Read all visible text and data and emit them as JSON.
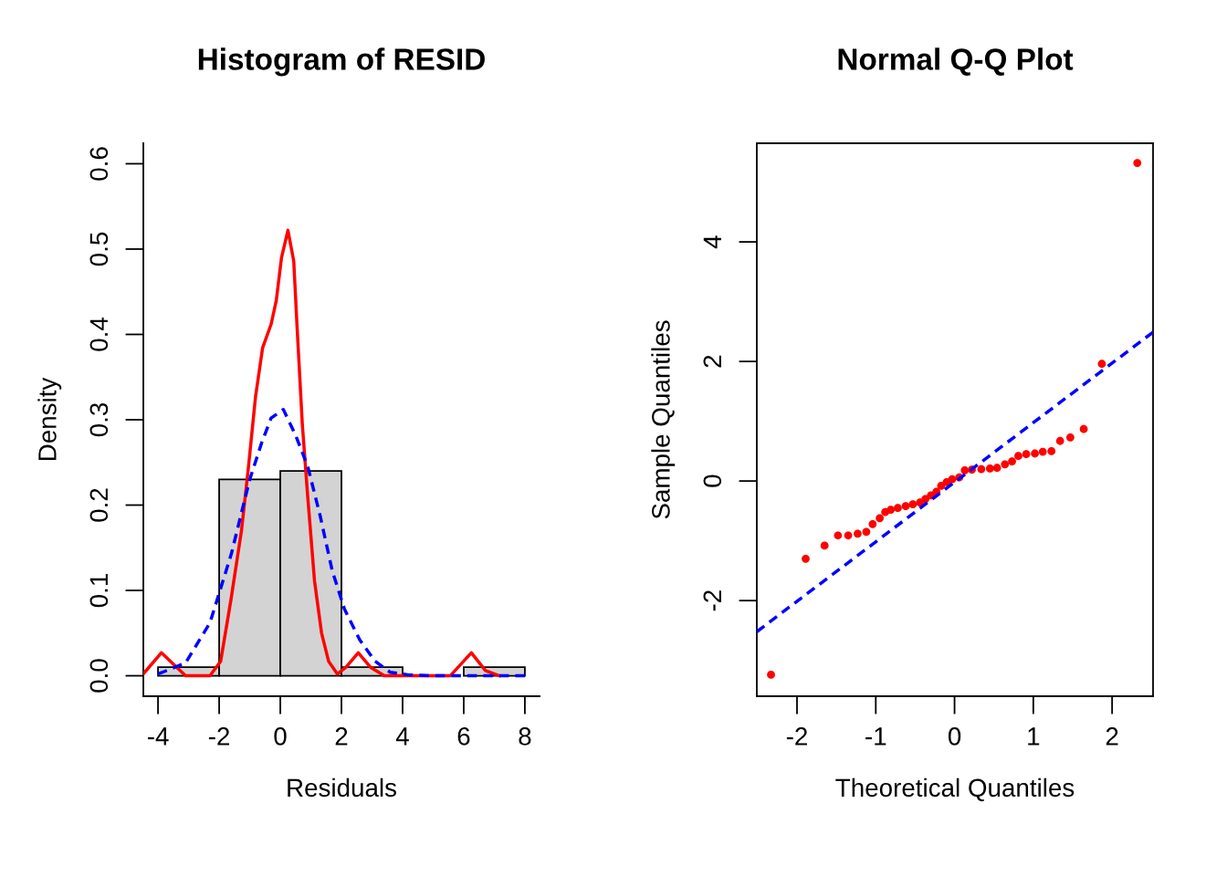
{
  "chart_data": [
    {
      "type": "histogram",
      "title": "Histogram of RESID",
      "xlabel": "Residuals",
      "ylabel": "Density",
      "bins": [
        -4,
        -2,
        0,
        2,
        4,
        6,
        8
      ],
      "values": [
        0.01,
        0.23,
        0.24,
        0.01,
        0,
        0.01
      ],
      "color": "#d3d3d3",
      "xlim": [
        -4.48,
        8.48
      ],
      "ylim": [
        -0.024,
        0.624
      ],
      "xticks": [
        -4,
        -2,
        0,
        2,
        4,
        6,
        8
      ],
      "yticks": [
        {
          "value": 0,
          "label": "0.0"
        },
        0.1,
        0.2,
        0.3,
        0.4,
        0.5,
        0.6
      ],
      "grid": false,
      "legend": false,
      "series": [
        {
          "type": "line",
          "color": "#ff0000",
          "line_style": "solid",
          "x": [
            -4.46,
            -3.89,
            -3.1,
            -2.3,
            -1.95,
            -1.61,
            -1.27,
            -1.04,
            -0.81,
            -0.58,
            -0.3,
            -0.13,
            0.04,
            0.25,
            0.44,
            0.55,
            0.72,
            0.89,
            1.12,
            1.35,
            1.58,
            1.87,
            2.15,
            2.55,
            2.95,
            3.4,
            5.56,
            6.25,
            6.71,
            7.16
          ],
          "values": [
            0.003,
            0.027,
            0,
            0,
            0.017,
            0.09,
            0.17,
            0.245,
            0.327,
            0.384,
            0.412,
            0.44,
            0.49,
            0.522,
            0.486,
            0.408,
            0.295,
            0.213,
            0.111,
            0.05,
            0.017,
            0.002,
            0.01,
            0.027,
            0.01,
            0,
            0,
            0.027,
            0.006,
            0
          ]
        },
        {
          "type": "line",
          "color": "#0000ff",
          "line_style": "dashed",
          "x": [
            -4,
            -3.1,
            -2.3,
            -1.6,
            -1.0,
            -0.6,
            -0.3,
            0.1,
            0.5,
            0.9,
            1.3,
            1.7,
            2.1,
            2.6,
            3.1,
            3.6,
            4.2,
            5,
            8
          ],
          "values": [
            0.002,
            0.015,
            0.062,
            0.143,
            0.23,
            0.274,
            0.302,
            0.312,
            0.282,
            0.245,
            0.188,
            0.123,
            0.078,
            0.042,
            0.017,
            0.004,
            0.001,
            0,
            0
          ]
        }
      ]
    },
    {
      "type": "scatter",
      "title": "Normal Q-Q Plot",
      "xlabel": "Theoretical Quantiles",
      "ylabel": "Sample Quantiles",
      "xlim": [
        -2.51,
        2.52
      ],
      "ylim": [
        -3.6,
        5.65
      ],
      "xticks": [
        -2,
        -1,
        0,
        1,
        2
      ],
      "yticks": [
        -2,
        0,
        2,
        4
      ],
      "grid": false,
      "legend": false,
      "series": [
        {
          "type": "scatter",
          "color": "#ff0000",
          "marker": "circle",
          "x": [
            -2.33,
            -1.89,
            -1.65,
            -1.48,
            -1.35,
            -1.23,
            -1.12,
            -1.04,
            -0.95,
            -0.88,
            -0.81,
            -0.72,
            -0.62,
            -0.53,
            -0.44,
            -0.37,
            -0.3,
            -0.23,
            -0.17,
            -0.1,
            -0.03,
            0.06,
            0.13,
            0.22,
            0.34,
            0.45,
            0.54,
            0.64,
            0.73,
            0.81,
            0.91,
            1.02,
            1.12,
            1.23,
            1.34,
            1.47,
            1.64,
            1.87,
            2.32
          ],
          "values": [
            -3.24,
            -1.3,
            -1.08,
            -0.91,
            -0.91,
            -0.88,
            -0.85,
            -0.72,
            -0.62,
            -0.52,
            -0.48,
            -0.45,
            -0.42,
            -0.39,
            -0.36,
            -0.3,
            -0.24,
            -0.18,
            -0.08,
            -0.02,
            0.03,
            0.06,
            0.18,
            0.19,
            0.2,
            0.21,
            0.22,
            0.28,
            0.33,
            0.42,
            0.45,
            0.46,
            0.49,
            0.5,
            0.67,
            0.73,
            0.87,
            1.96,
            5.32
          ]
        },
        {
          "type": "line",
          "color": "#0000ff",
          "line_style": "dashed",
          "x": [
            -2.51,
            2.52
          ],
          "values": [
            -2.52,
            2.49
          ]
        }
      ]
    }
  ]
}
